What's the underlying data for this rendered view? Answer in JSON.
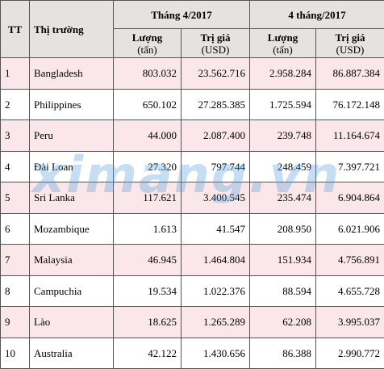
{
  "header": {
    "tt": "TT",
    "market": "Thị trường",
    "group1": "Tháng 4/2017",
    "group2": "4 tháng/2017",
    "volume_label": "Lượng",
    "volume_unit": "(tấn)",
    "value_label": "Trị giá",
    "value_unit": "(USD)"
  },
  "rows": [
    {
      "tt": "1",
      "market": "Bangladesh",
      "m_qty": "803.032",
      "m_val": "23.562.716",
      "y_qty": "2.958.284",
      "y_val": "86.887.384"
    },
    {
      "tt": "2",
      "market": "Philippines",
      "m_qty": "650.102",
      "m_val": "27.285.385",
      "y_qty": "1.725.594",
      "y_val": "76.172.148"
    },
    {
      "tt": "3",
      "market": "Peru",
      "m_qty": "44.000",
      "m_val": "2.087.400",
      "y_qty": "239.748",
      "y_val": "11.164.674"
    },
    {
      "tt": "4",
      "market": "Đài Loan",
      "m_qty": "27.320",
      "m_val": "797.744",
      "y_qty": "248.459",
      "y_val": "7.397.721"
    },
    {
      "tt": "5",
      "market": "Sri Lanka",
      "m_qty": "117.621",
      "m_val": "3.400.545",
      "y_qty": "235.474",
      "y_val": "6.904.864"
    },
    {
      "tt": "6",
      "market": "Mozambique",
      "m_qty": "1.613",
      "m_val": "41.547",
      "y_qty": "208.950",
      "y_val": "6.021.906"
    },
    {
      "tt": "7",
      "market": "Malaysia",
      "m_qty": "46.945",
      "m_val": "1.464.804",
      "y_qty": "151.934",
      "y_val": "4.756.891"
    },
    {
      "tt": "8",
      "market": "Campuchia",
      "m_qty": "19.534",
      "m_val": "1.022.376",
      "y_qty": "88.594",
      "y_val": "4.655.728"
    },
    {
      "tt": "9",
      "market": "Lào",
      "m_qty": "18.625",
      "m_val": "1.265.289",
      "y_qty": "62.208",
      "y_val": "3.995.037"
    },
    {
      "tt": "10",
      "market": "Australia",
      "m_qty": "42.122",
      "m_val": "1.430.656",
      "y_qty": "86.388",
      "y_val": "2.990.772"
    }
  ],
  "watermark": "ximang.vn",
  "colors": {
    "header_bg": "#e6e2e2",
    "odd_row_bg": "#fbe7e9",
    "even_row_bg": "#ffffff",
    "watermark": "#5aa0dc"
  }
}
